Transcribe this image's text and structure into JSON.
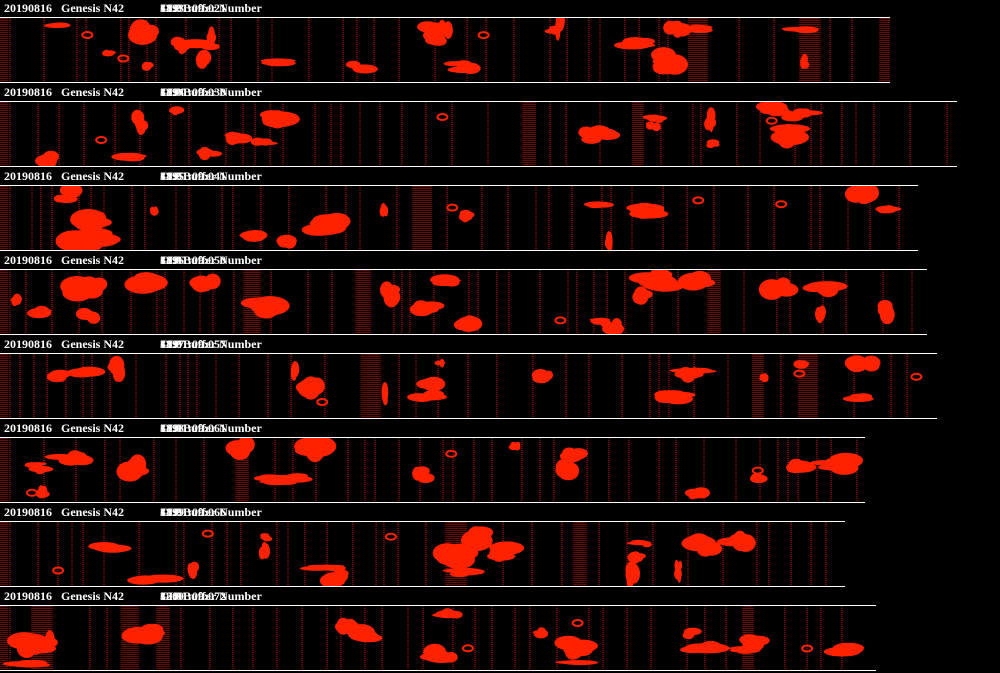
{
  "colors": {
    "background": "#000000",
    "particle": "#ff2200",
    "text": "#ffffff"
  },
  "buffers": [
    {
      "date": "20190816",
      "probe": "Genesis N42",
      "time": "18:01:09:021",
      "buffer_label": "CIP Buffer Number",
      "number": "3193",
      "width": 890
    },
    {
      "date": "20190816",
      "probe": "Genesis N42",
      "time": "18:01:09:030",
      "buffer_label": "CIP Buffer Number",
      "number": "3194",
      "width": 957
    },
    {
      "date": "20190816",
      "probe": "Genesis N42",
      "time": "18:01:09:041",
      "buffer_label": "CIP Buffer Number",
      "number": "3195",
      "width": 918
    },
    {
      "date": "20190816",
      "probe": "Genesis N42",
      "time": "18:01:09:050",
      "buffer_label": "CIP Buffer Number",
      "number": "3196",
      "width": 927
    },
    {
      "date": "20190816",
      "probe": "Genesis N42",
      "time": "18:01:09:057",
      "buffer_label": "CIP Buffer Number",
      "number": "3197",
      "width": 937
    },
    {
      "date": "20190816",
      "probe": "Genesis N42",
      "time": "18:01:09:061",
      "buffer_label": "CIP Buffer Number",
      "number": "3198",
      "width": 865
    },
    {
      "date": "20190816",
      "probe": "Genesis N42",
      "time": "18:01:09:066",
      "buffer_label": "CIP Buffer Number",
      "number": "3199",
      "width": 845
    },
    {
      "date": "20190816",
      "probe": "Genesis N42",
      "time": "18:01:09:072",
      "buffer_label": "CIP Buffer Number",
      "number": "3200",
      "width": 876
    }
  ]
}
